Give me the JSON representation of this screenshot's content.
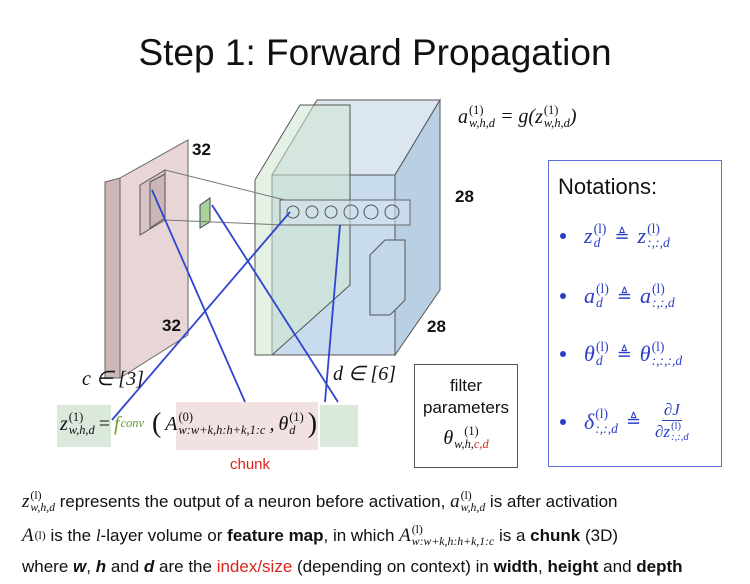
{
  "title": "Step 1: Forward Propagation",
  "diagram": {
    "input_labels": [
      "32",
      "32"
    ],
    "output_labels": [
      "28",
      "28"
    ],
    "input_channels": "c ∈ [3]",
    "output_channels": "d ∈ [6]"
  },
  "activation": {
    "a": {
      "base": "a",
      "sup": "(1)",
      "sub": "w,h,d"
    },
    "eq": "= g(",
    "z": {
      "base": "z",
      "sup": "(1)",
      "sub": "w,h,d"
    },
    "close": ")"
  },
  "equation": {
    "z": {
      "base": "z",
      "sup": "(1)",
      "sub": "w,h,d"
    },
    "eq": "=",
    "f": {
      "base": "f",
      "sub": "conv"
    },
    "open": "(",
    "A": {
      "base": "A",
      "sup": "(0)",
      "sub": "w:w+k,h:h+k,1:c"
    },
    "comma": ",",
    "theta": {
      "base": "θ",
      "sup": "(1)",
      "sub": "d"
    },
    "close": ")",
    "chunk_label": "chunk"
  },
  "filter_box": {
    "lines": [
      "filter",
      "parameters"
    ],
    "theta": {
      "base": "θ",
      "sup": "(1)",
      "sub": "w,h,",
      "sub_red": "c,d"
    }
  },
  "notations": {
    "title": "Notations:",
    "items": [
      {
        "lhs": {
          "base": "z",
          "sup": "(l)",
          "sub": "d"
        },
        "op": "≜",
        "rhs": {
          "base": "z",
          "sup": "(l)",
          "sub": ":,:,d"
        }
      },
      {
        "lhs": {
          "base": "a",
          "sup": "(l)",
          "sub": "d"
        },
        "op": "≜",
        "rhs": {
          "base": "a",
          "sup": "(l)",
          "sub": ":,:,d"
        }
      },
      {
        "lhs": {
          "base": "θ",
          "sup": "(l)",
          "sub": "d"
        },
        "op": "≜",
        "rhs": {
          "base": "θ",
          "sup": "(l)",
          "sub": ":,:,:,d"
        }
      },
      {
        "lhs": {
          "base": "δ",
          "sup": "(l)",
          "sub": ":,:,d"
        },
        "op": "≜",
        "num": "∂J",
        "den": {
          "base": "∂z",
          "sup": "(l)",
          "sub": ":,:,d"
        }
      }
    ]
  },
  "footer": {
    "line1": {
      "z": {
        "base": "z",
        "sup": "(l)",
        "sub": "w,h,d"
      },
      "t1": " represents the output of a neuron before activation, ",
      "a": {
        "base": "a",
        "sup": "(l)",
        "sub": "w,h,d"
      },
      "t2": " is after activation"
    },
    "line2": {
      "A": {
        "base": "A",
        "sup": "(l)"
      },
      "t1": " is the ",
      "l": "l",
      "t2": "-layer volume or ",
      "fm": "feature map",
      "t3": ", in which ",
      "A2": {
        "base": "A",
        "sup": "(l)",
        "sub": "w:w+k,h:h+k,1:c"
      },
      "t4": " is a ",
      "chunk": "chunk",
      "t5": " (3D)"
    },
    "line3": {
      "t1": "where ",
      "w": "w",
      "t2": ", ",
      "h": "h",
      "t3": " and ",
      "d": "d",
      "t4": " are the ",
      "idx": "index/size",
      "t5": " (depending on context) in ",
      "width": "width",
      "t6": ", ",
      "height": "height",
      "t7": " and ",
      "depth": "depth"
    }
  }
}
